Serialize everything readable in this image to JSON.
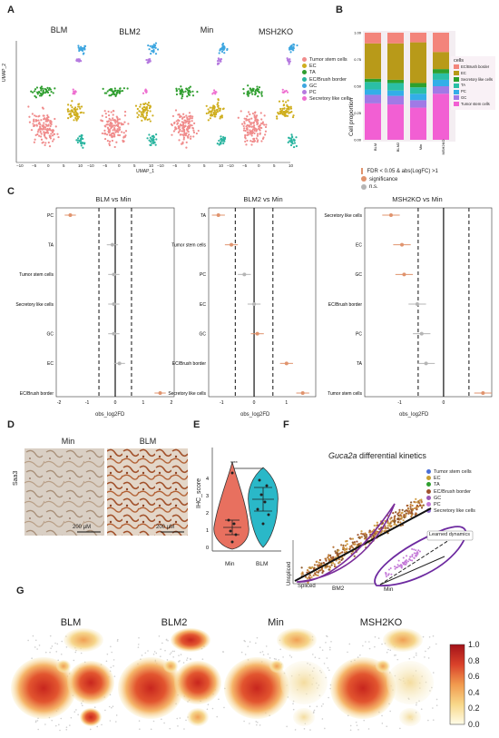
{
  "panels": {
    "A": "A",
    "B": "B",
    "C": "C",
    "D": "D",
    "E": "E",
    "F": "F",
    "G": "G"
  },
  "umap": {
    "samples": [
      "BLM",
      "BLM2",
      "Min",
      "MSH2KO"
    ],
    "xlabel": "UMAP_1",
    "ylabel": "UMAP_2",
    "xticks": [
      "−10",
      "−5",
      "0",
      "5",
      "10"
    ],
    "yticks": [
      "10",
      "5",
      "0",
      "−5"
    ],
    "legend": [
      {
        "label": "Tumor stem cells",
        "color": "#f08c8c"
      },
      {
        "label": "EC",
        "color": "#cfae1e"
      },
      {
        "label": "TA",
        "color": "#2f9e2f"
      },
      {
        "label": "EC/Brush border",
        "color": "#2bb5a0"
      },
      {
        "label": "GC",
        "color": "#3ea6e0"
      },
      {
        "label": "PC",
        "color": "#b57adf"
      },
      {
        "label": "Secretory like cells",
        "color": "#ee6fd0"
      }
    ]
  },
  "prop": {
    "ylabel": "Cell proportion",
    "yticks": [
      "0.00",
      "0.25",
      "0.50",
      "0.75",
      "1.00"
    ],
    "categories": [
      "BLM",
      "BLM2",
      "Min",
      "MSH2KO"
    ],
    "legend_title": "cells",
    "legend": [
      {
        "label": "EC/Brush border",
        "color": "#f3847b"
      },
      {
        "label": "EC",
        "color": "#b89a19"
      },
      {
        "label": "Secretory like cells",
        "color": "#2da02d"
      },
      {
        "label": "TA",
        "color": "#2bbfa6"
      },
      {
        "label": "PC",
        "color": "#33aee8"
      },
      {
        "label": "GC",
        "color": "#a07ae6"
      },
      {
        "label": "Tumor stem cells",
        "color": "#f25fd3"
      }
    ]
  },
  "chart_data": {
    "type": "bar",
    "stacked": true,
    "categories": [
      "BLM",
      "BLM2",
      "Min",
      "MSH2KO"
    ],
    "ylabel": "Cell proportion",
    "ylim": [
      0,
      1
    ],
    "series": [
      {
        "name": "Tumor stem cells",
        "values": [
          0.34,
          0.33,
          0.3,
          0.43
        ]
      },
      {
        "name": "GC",
        "values": [
          0.08,
          0.08,
          0.07,
          0.07
        ]
      },
      {
        "name": "PC",
        "values": [
          0.05,
          0.05,
          0.06,
          0.06
        ]
      },
      {
        "name": "TA",
        "values": [
          0.07,
          0.07,
          0.06,
          0.06
        ]
      },
      {
        "name": "Secretory like cells",
        "values": [
          0.03,
          0.03,
          0.04,
          0.04
        ]
      },
      {
        "name": "EC",
        "values": [
          0.33,
          0.34,
          0.38,
          0.16
        ]
      },
      {
        "name": "EC/Brush border",
        "values": [
          0.1,
          0.1,
          0.09,
          0.18
        ]
      }
    ]
  },
  "forest": {
    "legend": {
      "sig": "FDR < 0.05 & abs(LogFC) >1",
      "title": "significance",
      "ns": "n.s."
    },
    "xlabel": "obs_log2FD",
    "plots": [
      {
        "title": "BLM vs Min",
        "cats": [
          "PC",
          "TA",
          "Tumor stem cells",
          "Secretory like cells",
          "GC",
          "EC",
          "EC/Brush border"
        ],
        "vals": [
          -1.6,
          -0.1,
          -0.05,
          -0.05,
          -0.05,
          0.15,
          1.6
        ],
        "sig": [
          true,
          false,
          false,
          false,
          false,
          false,
          true
        ],
        "ticks": [
          "-2",
          "-1",
          "0",
          "1",
          "2"
        ]
      },
      {
        "title": "BLM2 vs Min",
        "cats": [
          "TA",
          "Tumor stem cells",
          "PC",
          "EC",
          "GC",
          "EC/Brush border",
          "Secretory like cells"
        ],
        "vals": [
          -1.1,
          -0.7,
          -0.3,
          0.0,
          0.1,
          1.0,
          1.5
        ],
        "sig": [
          true,
          true,
          false,
          false,
          true,
          true,
          true
        ],
        "ticks": [
          "-1",
          "0",
          "1"
        ]
      },
      {
        "title": "MSH2KO vs Min",
        "cats": [
          "Secretory like cells",
          "EC",
          "GC",
          "EC/Brush border",
          "PC",
          "TA",
          "Tumor stem cells"
        ],
        "vals": [
          -1.2,
          -0.95,
          -0.9,
          -0.6,
          -0.5,
          -0.4,
          0.9
        ],
        "sig": [
          true,
          true,
          true,
          false,
          false,
          false,
          true
        ],
        "ticks": [
          "-1",
          "0"
        ]
      }
    ]
  },
  "ihc": {
    "ylabel": "Saa3",
    "titles": [
      "Min",
      "BLM"
    ],
    "scalebar": "200 μM"
  },
  "violin": {
    "ylabel": "IHC_score",
    "categories": [
      "Min",
      "BLM"
    ],
    "yticks": [
      "0",
      "1",
      "2",
      "3",
      "4"
    ],
    "sig": "****"
  },
  "velocity": {
    "title_gene": "Guca2a",
    "title_rest": " differential kinetics",
    "xlabel": "Spliced",
    "ylabel": "Unspliced",
    "sample1": "BM2",
    "sample2": "Min",
    "learned": "Learned dynamics",
    "legend": [
      {
        "label": "Tumor stem cells",
        "color": "#4a6fd6"
      },
      {
        "label": "EC",
        "color": "#c8a032"
      },
      {
        "label": "TA",
        "color": "#2e9e2e"
      },
      {
        "label": "EC/Brush border",
        "color": "#a0522d"
      },
      {
        "label": "GC",
        "color": "#9b59b6"
      },
      {
        "label": "PC",
        "color": "#c47ad8"
      },
      {
        "label": "Secretory like cells",
        "color": "#8e6ccf"
      }
    ]
  },
  "heat": {
    "samples": [
      "BLM",
      "BLM2",
      "Min",
      "MSH2KO"
    ],
    "colorbar": [
      "1.0",
      "0.8",
      "0.6",
      "0.4",
      "0.2",
      "0.0"
    ]
  }
}
